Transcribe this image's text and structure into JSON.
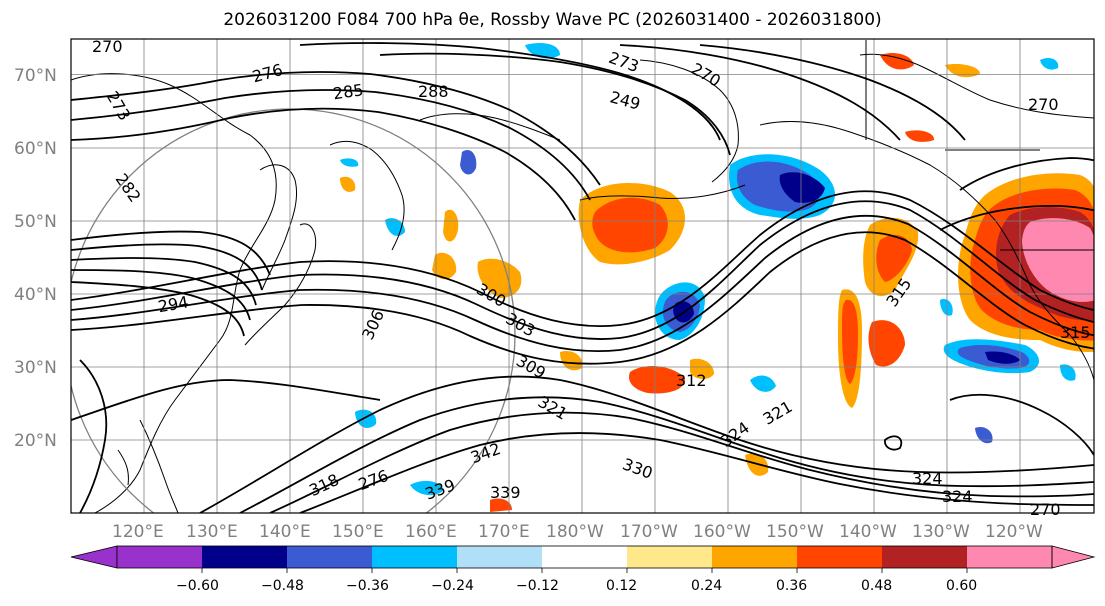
{
  "title": "2026031200 F084 700 hPa θe, Rossby Wave PC (2026031400 - 2026031800)",
  "map": {
    "lat_labels": [
      "70°N",
      "60°N",
      "50°N",
      "40°N",
      "30°N",
      "20°N"
    ],
    "lon_labels": [
      "120°E",
      "130°E",
      "140°E",
      "150°E",
      "160°E",
      "170°E",
      "180°W",
      "170°W",
      "160°W",
      "150°W",
      "140°W",
      "130°W",
      "120°W"
    ],
    "contour_labels": [
      "270",
      "273",
      "276",
      "273",
      "270",
      "285",
      "288",
      "249",
      "282",
      "270",
      "294",
      "300",
      "303",
      "306",
      "309",
      "312",
      "315",
      "318",
      "321",
      "324",
      "324",
      "330",
      "339",
      "339",
      "342",
      "321",
      "324",
      "270",
      "315",
      "276"
    ]
  },
  "colorbar": {
    "ticks": [
      "−0.60",
      "−0.48",
      "−0.36",
      "−0.24",
      "−0.12",
      "0.12",
      "0.24",
      "0.36",
      "0.48",
      "0.60"
    ],
    "colors": [
      "#9932cc",
      "#00008b",
      "#3a5bd1",
      "#00bfff",
      "#b0e0f8",
      "#ffffff",
      "#ffe88a",
      "#ffa500",
      "#ff4500",
      "#b22222",
      "#ff88b0"
    ]
  }
}
